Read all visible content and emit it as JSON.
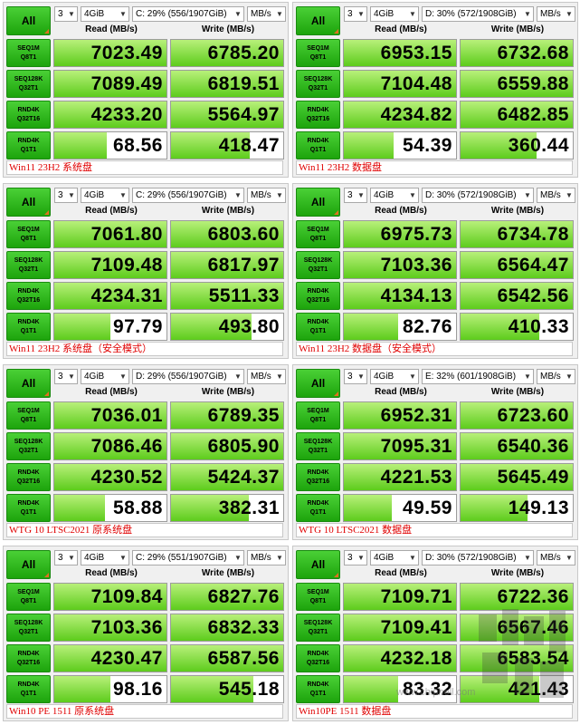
{
  "header": {
    "all_label": "All",
    "read_header": "Read (MB/s)",
    "write_header": "Write (MB/s)"
  },
  "panels": [
    {
      "count": "3",
      "size": "4GiB",
      "drive": "C: 29% (556/1907GiB)",
      "unit": "MB/s",
      "caption": "Win11 23H2 系统盘",
      "rows": [
        {
          "name": "SEQ1M",
          "sub": "Q8T1",
          "read": "7023.49",
          "write": "6785.20",
          "read_fill": 1.0,
          "write_fill": 1.0
        },
        {
          "name": "SEQ128K",
          "sub": "Q32T1",
          "read": "7089.49",
          "write": "6819.51",
          "read_fill": 1.0,
          "write_fill": 1.0
        },
        {
          "name": "RND4K",
          "sub": "Q32T16",
          "read": "4233.20",
          "write": "5564.97",
          "read_fill": 1.0,
          "write_fill": 1.0
        },
        {
          "name": "RND4K",
          "sub": "Q1T1",
          "read": "68.56",
          "write": "418.47",
          "read_fill": 0.47,
          "write_fill": 0.7
        }
      ]
    },
    {
      "count": "3",
      "size": "4GiB",
      "drive": "D: 30% (572/1908GiB)",
      "unit": "MB/s",
      "caption": "Win11 23H2 数据盘",
      "rows": [
        {
          "name": "SEQ1M",
          "sub": "Q8T1",
          "read": "6953.15",
          "write": "6732.68",
          "read_fill": 1.0,
          "write_fill": 1.0
        },
        {
          "name": "SEQ128K",
          "sub": "Q32T1",
          "read": "7104.48",
          "write": "6559.88",
          "read_fill": 1.0,
          "write_fill": 1.0
        },
        {
          "name": "RND4K",
          "sub": "Q32T16",
          "read": "4234.82",
          "write": "6482.85",
          "read_fill": 1.0,
          "write_fill": 1.0
        },
        {
          "name": "RND4K",
          "sub": "Q1T1",
          "read": "54.39",
          "write": "360.44",
          "read_fill": 0.44,
          "write_fill": 0.68
        }
      ]
    },
    {
      "count": "3",
      "size": "4GiB",
      "drive": "C: 29% (556/1907GiB)",
      "unit": "MB/s",
      "caption": "Win11 23H2 系统盘（安全模式）",
      "rows": [
        {
          "name": "SEQ1M",
          "sub": "Q8T1",
          "read": "7061.80",
          "write": "6803.60",
          "read_fill": 1.0,
          "write_fill": 1.0
        },
        {
          "name": "SEQ128K",
          "sub": "Q32T1",
          "read": "7109.48",
          "write": "6817.97",
          "read_fill": 1.0,
          "write_fill": 1.0
        },
        {
          "name": "RND4K",
          "sub": "Q32T16",
          "read": "4234.31",
          "write": "5511.33",
          "read_fill": 1.0,
          "write_fill": 1.0
        },
        {
          "name": "RND4K",
          "sub": "Q1T1",
          "read": "97.79",
          "write": "493.80",
          "read_fill": 0.5,
          "write_fill": 0.72
        }
      ]
    },
    {
      "count": "3",
      "size": "4GiB",
      "drive": "D: 30% (572/1908GiB)",
      "unit": "MB/s",
      "caption": "Win11 23H2 数据盘（安全模式）",
      "rows": [
        {
          "name": "SEQ1M",
          "sub": "Q8T1",
          "read": "6975.73",
          "write": "6734.78",
          "read_fill": 1.0,
          "write_fill": 1.0
        },
        {
          "name": "SEQ128K",
          "sub": "Q32T1",
          "read": "7103.36",
          "write": "6564.47",
          "read_fill": 1.0,
          "write_fill": 1.0
        },
        {
          "name": "RND4K",
          "sub": "Q32T16",
          "read": "4134.13",
          "write": "6542.56",
          "read_fill": 1.0,
          "write_fill": 1.0
        },
        {
          "name": "RND4K",
          "sub": "Q1T1",
          "read": "82.76",
          "write": "410.33",
          "read_fill": 0.48,
          "write_fill": 0.7
        }
      ]
    },
    {
      "count": "3",
      "size": "4GiB",
      "drive": "D: 29% (556/1907GiB)",
      "unit": "MB/s",
      "caption": "WTG 10 LTSC2021 原系统盘",
      "rows": [
        {
          "name": "SEQ1M",
          "sub": "Q8T1",
          "read": "7036.01",
          "write": "6789.35",
          "read_fill": 1.0,
          "write_fill": 1.0
        },
        {
          "name": "SEQ128K",
          "sub": "Q32T1",
          "read": "7086.46",
          "write": "6805.90",
          "read_fill": 1.0,
          "write_fill": 1.0
        },
        {
          "name": "RND4K",
          "sub": "Q32T16",
          "read": "4230.52",
          "write": "5424.37",
          "read_fill": 1.0,
          "write_fill": 1.0
        },
        {
          "name": "RND4K",
          "sub": "Q1T1",
          "read": "58.88",
          "write": "382.31",
          "read_fill": 0.45,
          "write_fill": 0.69
        }
      ]
    },
    {
      "count": "3",
      "size": "4GiB",
      "drive": "E: 32% (601/1908GiB)",
      "unit": "MB/s",
      "caption": "WTG 10 LTSC2021 数据盘",
      "rows": [
        {
          "name": "SEQ1M",
          "sub": "Q8T1",
          "read": "6952.31",
          "write": "6723.60",
          "read_fill": 1.0,
          "write_fill": 1.0
        },
        {
          "name": "SEQ128K",
          "sub": "Q32T1",
          "read": "7095.31",
          "write": "6540.36",
          "read_fill": 1.0,
          "write_fill": 1.0
        },
        {
          "name": "RND4K",
          "sub": "Q32T16",
          "read": "4221.53",
          "write": "5645.49",
          "read_fill": 1.0,
          "write_fill": 1.0
        },
        {
          "name": "RND4K",
          "sub": "Q1T1",
          "read": "49.59",
          "write": "149.13",
          "read_fill": 0.43,
          "write_fill": 0.6
        }
      ]
    },
    {
      "count": "3",
      "size": "4GiB",
      "drive": "C: 29% (551/1907GiB)",
      "unit": "MB/s",
      "caption": "Win10 PE 1511 原系统盘",
      "rows": [
        {
          "name": "SEQ1M",
          "sub": "Q8T1",
          "read": "7109.84",
          "write": "6827.76",
          "read_fill": 1.0,
          "write_fill": 1.0
        },
        {
          "name": "SEQ128K",
          "sub": "Q32T1",
          "read": "7103.36",
          "write": "6832.33",
          "read_fill": 1.0,
          "write_fill": 1.0
        },
        {
          "name": "RND4K",
          "sub": "Q32T16",
          "read": "4230.47",
          "write": "6587.56",
          "read_fill": 1.0,
          "write_fill": 1.0
        },
        {
          "name": "RND4K",
          "sub": "Q1T1",
          "read": "98.16",
          "write": "545.18",
          "read_fill": 0.5,
          "write_fill": 0.73
        }
      ]
    },
    {
      "count": "3",
      "size": "4GiB",
      "drive": "D: 30% (572/1908GiB)",
      "unit": "MB/s",
      "caption": "Win10PE 1511 数据盘",
      "rows": [
        {
          "name": "SEQ1M",
          "sub": "Q8T1",
          "read": "7109.71",
          "write": "6722.36",
          "read_fill": 1.0,
          "write_fill": 1.0
        },
        {
          "name": "SEQ128K",
          "sub": "Q32T1",
          "read": "7109.41",
          "write": "6567.46",
          "read_fill": 1.0,
          "write_fill": 1.0
        },
        {
          "name": "RND4K",
          "sub": "Q32T16",
          "read": "4232.18",
          "write": "6583.54",
          "read_fill": 1.0,
          "write_fill": 1.0
        },
        {
          "name": "RND4K",
          "sub": "Q1T1",
          "read": "83.32",
          "write": "421.43",
          "read_fill": 0.48,
          "write_fill": 0.7
        }
      ]
    }
  ],
  "watermark": {
    "url": "www.chiphell.com"
  }
}
